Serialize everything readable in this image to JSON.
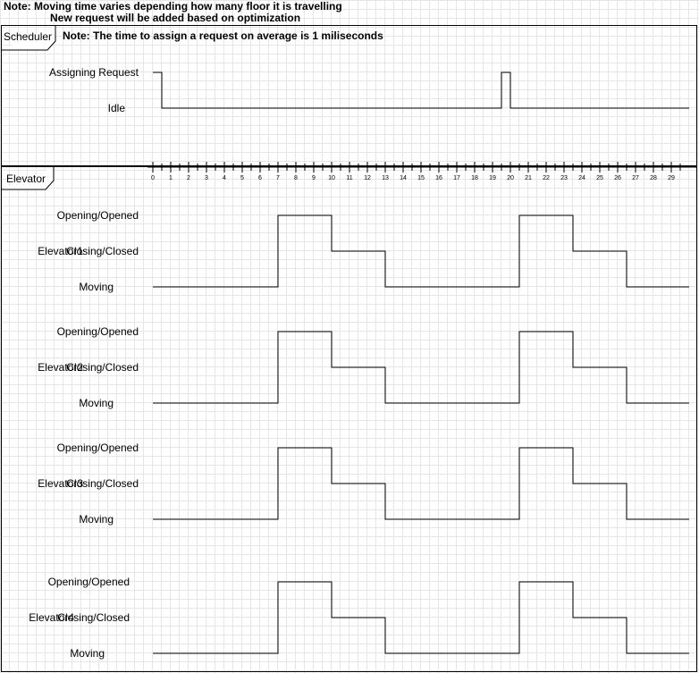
{
  "notes": {
    "line1": "Note: Moving time varies depending how many floor it is travelling",
    "line2": "New request will be added based on optimization",
    "scheduler_note": "Note: The time  to assign a request on average is 1 miliseconds"
  },
  "frames": {
    "scheduler": "Scheduler",
    "elevator": "Elevator"
  },
  "scheduler": {
    "state_labels": [
      "Assigning Request",
      "Idle"
    ],
    "transitions": [
      {
        "t": 0,
        "state": "Assigning Request"
      },
      {
        "t": 0.5,
        "state": "Idle"
      },
      {
        "t": 19.5,
        "state": "Assigning Request"
      },
      {
        "t": 20,
        "state": "Idle"
      },
      {
        "t": 30,
        "state": "Idle"
      }
    ]
  },
  "timeline": {
    "ticks": [
      "0",
      "1",
      "2",
      "3",
      "4",
      "5",
      "6",
      "7",
      "8",
      "9",
      "10",
      "11",
      "12",
      "13",
      "14",
      "15",
      "16",
      "17",
      "18",
      "19",
      "20",
      "21",
      "22",
      "23",
      "24",
      "25",
      "26",
      "27",
      "28",
      "29"
    ]
  },
  "elevators": [
    {
      "name": "Elevator1",
      "state_labels": [
        "Opening/Opened",
        "Closing/Closed",
        "Moving"
      ],
      "transitions": [
        {
          "t": 0,
          "state": "Moving"
        },
        {
          "t": 7,
          "state": "Opening/Opened"
        },
        {
          "t": 10,
          "state": "Closing/Closed"
        },
        {
          "t": 13,
          "state": "Moving"
        },
        {
          "t": 20.5,
          "state": "Opening/Opened"
        },
        {
          "t": 23.5,
          "state": "Closing/Closed"
        },
        {
          "t": 26.5,
          "state": "Moving"
        },
        {
          "t": 30,
          "state": "Moving"
        }
      ]
    },
    {
      "name": "Elevator2",
      "state_labels": [
        "Opening/Opened",
        "Closing/Closed",
        "Moving"
      ],
      "transitions": [
        {
          "t": 0,
          "state": "Moving"
        },
        {
          "t": 7,
          "state": "Opening/Opened"
        },
        {
          "t": 10,
          "state": "Closing/Closed"
        },
        {
          "t": 13,
          "state": "Moving"
        },
        {
          "t": 20.5,
          "state": "Opening/Opened"
        },
        {
          "t": 23.5,
          "state": "Closing/Closed"
        },
        {
          "t": 26.5,
          "state": "Moving"
        },
        {
          "t": 30,
          "state": "Moving"
        }
      ]
    },
    {
      "name": "Elevator3",
      "state_labels": [
        "Opening/Opened",
        "Closing/Closed",
        "Moving"
      ],
      "transitions": [
        {
          "t": 0,
          "state": "Moving"
        },
        {
          "t": 7,
          "state": "Opening/Opened"
        },
        {
          "t": 10,
          "state": "Closing/Closed"
        },
        {
          "t": 13,
          "state": "Moving"
        },
        {
          "t": 20.5,
          "state": "Opening/Opened"
        },
        {
          "t": 23.5,
          "state": "Closing/Closed"
        },
        {
          "t": 26.5,
          "state": "Moving"
        },
        {
          "t": 30,
          "state": "Moving"
        }
      ]
    },
    {
      "name": "Elevator4",
      "state_labels": [
        "Opening/Opened",
        "Closing/Closed",
        "Moving"
      ],
      "transitions": [
        {
          "t": 0,
          "state": "Moving"
        },
        {
          "t": 7,
          "state": "Opening/Opened"
        },
        {
          "t": 10,
          "state": "Closing/Closed"
        },
        {
          "t": 13,
          "state": "Moving"
        },
        {
          "t": 20.5,
          "state": "Opening/Opened"
        },
        {
          "t": 23.5,
          "state": "Closing/Closed"
        },
        {
          "t": 26.5,
          "state": "Moving"
        },
        {
          "t": 30,
          "state": "Moving"
        }
      ]
    }
  ]
}
